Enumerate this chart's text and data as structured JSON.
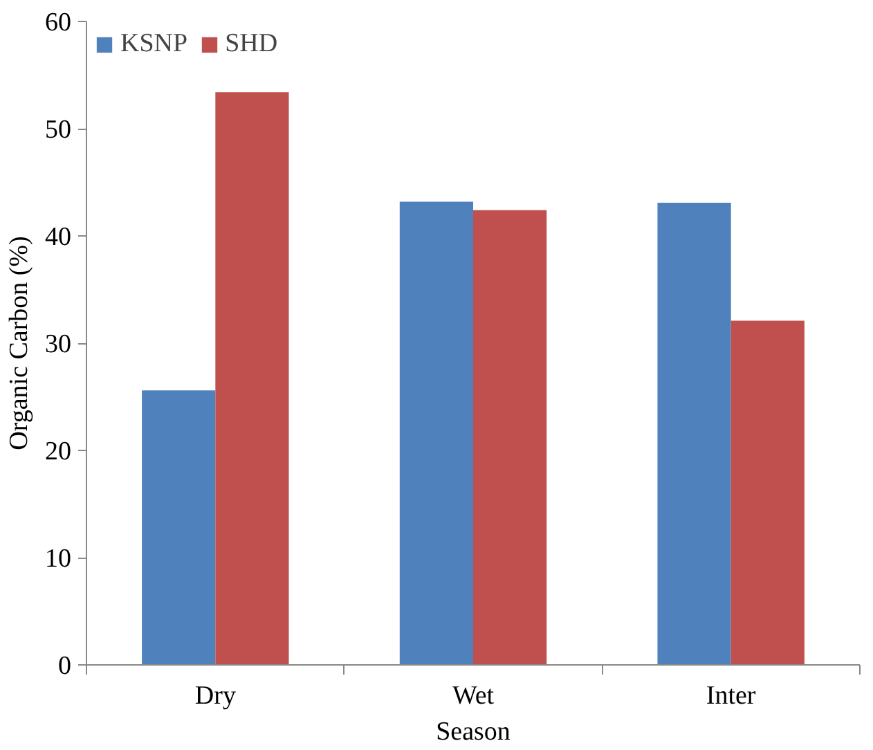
{
  "chart_data": {
    "type": "bar",
    "xlabel": "Season",
    "ylabel": "Organic Carbon (%)",
    "categories": [
      "Dry",
      "Wet",
      "Inter"
    ],
    "series": [
      {
        "name": "KSNP",
        "color": "#4f81bd",
        "values": [
          25.6,
          43.2,
          43.1
        ]
      },
      {
        "name": "SHD",
        "color": "#c0504d",
        "values": [
          53.4,
          42.4,
          32.1
        ]
      }
    ],
    "ylim": [
      0,
      60
    ],
    "yticks": [
      0,
      10,
      20,
      30,
      40,
      50,
      60
    ],
    "grid": false,
    "legend": "top left"
  }
}
